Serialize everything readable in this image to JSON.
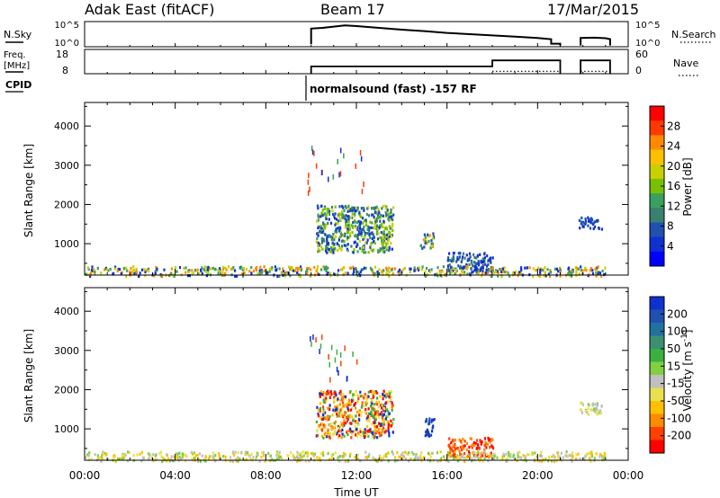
{
  "header": {
    "station": "Adak East (fitACF)",
    "beam": "Beam 17",
    "date": "17/Mar/2015"
  },
  "strip_labels": {
    "nsky": "N.Sky",
    "freq": "Freq.",
    "freq_unit": "[MHz]",
    "cpid": "CPID",
    "nsearch": "N.Search",
    "nave": "Nave"
  },
  "cpid_text": "normalsound (fast) -157 RF",
  "chart_data": [
    {
      "type": "line",
      "name": "nsky-nsearch-strip",
      "yticks_left": [
        "10^5",
        "10^0"
      ],
      "yticks_right": [
        "10^5",
        "10^0"
      ],
      "x_range": [
        0,
        24
      ],
      "segments": [
        {
          "x": [
            10.0,
            10.0,
            10.5,
            11.0,
            11.5,
            12.0,
            13.0,
            14.0,
            15.0,
            16.0,
            17.0,
            18.0,
            19.0,
            20.0,
            20.6,
            20.6,
            21.0,
            21.0
          ],
          "y": [
            0.1,
            0.72,
            0.75,
            0.8,
            0.85,
            0.82,
            0.75,
            0.68,
            0.62,
            0.55,
            0.5,
            0.45,
            0.4,
            0.35,
            0.3,
            0.12,
            0.12,
            0.05
          ]
        },
        {
          "x": [
            21.9,
            21.9,
            22.5,
            23.0,
            23.2,
            23.2
          ],
          "y": [
            0.05,
            0.35,
            0.36,
            0.34,
            0.3,
            0.05
          ]
        }
      ]
    },
    {
      "type": "line",
      "name": "freq-nave-strip",
      "yticks_left": [
        "18",
        "8"
      ],
      "yticks_right": [
        "60",
        "0"
      ],
      "ylim_left": [
        8,
        18
      ],
      "ylim_right": [
        0,
        60
      ],
      "x_range": [
        0,
        24
      ],
      "freq_segments": [
        {
          "x": [
            10.0,
            10.0,
            18.0,
            18.0,
            21.0,
            21.0
          ],
          "y": [
            8,
            11,
            11,
            13.5,
            13.5,
            8
          ]
        },
        {
          "x": [
            21.9,
            21.9,
            23.2,
            23.2
          ],
          "y": [
            8,
            13.5,
            13.5,
            8
          ]
        }
      ],
      "nave_segments": [
        {
          "x": [
            18.0,
            21.0
          ],
          "y": [
            9,
            9
          ]
        },
        {
          "x": [
            21.9,
            23.2
          ],
          "y": [
            9,
            9
          ]
        }
      ]
    },
    {
      "type": "heatmap",
      "name": "power-panel",
      "ylabel": "Slant Range [km]",
      "yticks": [
        1000,
        2000,
        3000,
        4000
      ],
      "ylim": [
        200,
        4600
      ],
      "x_range": [
        0,
        24
      ],
      "colorbar": {
        "label": "Power [dB]",
        "ticks": [
          "28",
          "24",
          "20",
          "16",
          "12",
          "8",
          "4"
        ],
        "colors": [
          "#ff0000",
          "#ff3a00",
          "#ff8a00",
          "#ffc000",
          "#c8d000",
          "#78c000",
          "#3aa060",
          "#3a8070",
          "#2050b0",
          "#1030d0",
          "#0000ff"
        ]
      },
      "regions": [
        {
          "x": [
            10.2,
            13.6
          ],
          "y": [
            800,
            2000
          ],
          "palette": [
            "#1030d0",
            "#2050b0",
            "#3a8070",
            "#3aa060",
            "#78c000",
            "#c8d000"
          ]
        },
        {
          "x": [
            14.8,
            15.4
          ],
          "y": [
            900,
            1300
          ],
          "palette": [
            "#ff8a00",
            "#c8d000",
            "#3aa060",
            "#2050b0"
          ]
        },
        {
          "x": [
            16.0,
            18.0
          ],
          "y": [
            300,
            800
          ],
          "palette": [
            "#1030d0",
            "#2050b0",
            "#3a8070"
          ]
        },
        {
          "x": [
            0.0,
            23.0
          ],
          "y": [
            200,
            450
          ],
          "palette": [
            "#1030d0",
            "#3aa060",
            "#c8d000",
            "#ff8a00"
          ]
        },
        {
          "x": [
            21.8,
            22.8
          ],
          "y": [
            1400,
            1700
          ],
          "palette": [
            "#1030d0",
            "#2050b0"
          ]
        },
        {
          "x": [
            9.8,
            12.4
          ],
          "y": [
            2300,
            3500
          ],
          "palette": [
            "#1030d0",
            "#ff3a00",
            "#3aa060"
          ]
        }
      ]
    },
    {
      "type": "heatmap",
      "name": "velocity-panel",
      "ylabel": "Slant Range [km]",
      "xlabel": "Time UT",
      "xticks": [
        "00:00",
        "04:00",
        "08:00",
        "12:00",
        "16:00",
        "20:00",
        "00:00"
      ],
      "yticks": [
        1000,
        2000,
        3000,
        4000
      ],
      "ylim": [
        200,
        4600
      ],
      "x_range": [
        0,
        24
      ],
      "colorbar": {
        "label": "Velocity [m s^-1]",
        "ticks": [
          "200",
          "100",
          "50",
          "15",
          "-15",
          "-50",
          "-100",
          "-200"
        ],
        "colors": [
          "#1030d0",
          "#2050b0",
          "#2070a0",
          "#3a9070",
          "#3ab040",
          "#80d040",
          "#c0c0c0",
          "#e8e050",
          "#ffc000",
          "#ff8a00",
          "#ff4000",
          "#ff0000"
        ]
      },
      "regions": [
        {
          "x": [
            10.2,
            13.6
          ],
          "y": [
            800,
            2000
          ],
          "palette": [
            "#ff0000",
            "#ff4000",
            "#ff8a00",
            "#ffc000",
            "#1030d0",
            "#3ab040",
            "#e8e050"
          ]
        },
        {
          "x": [
            15.0,
            15.4
          ],
          "y": [
            800,
            1300
          ],
          "palette": [
            "#1030d0",
            "#2050b0"
          ]
        },
        {
          "x": [
            16.0,
            18.0
          ],
          "y": [
            300,
            800
          ],
          "palette": [
            "#ff0000",
            "#ff4000",
            "#ff8a00"
          ]
        },
        {
          "x": [
            0.0,
            23.0
          ],
          "y": [
            200,
            450
          ],
          "palette": [
            "#ffc000",
            "#e8e050",
            "#80d040",
            "#c0c0c0"
          ]
        },
        {
          "x": [
            21.8,
            22.8
          ],
          "y": [
            1400,
            1700
          ],
          "palette": [
            "#e8e050",
            "#c0c0c0",
            "#80d040"
          ]
        },
        {
          "x": [
            9.8,
            12.4
          ],
          "y": [
            2300,
            3500
          ],
          "palette": [
            "#1030d0",
            "#ff4000",
            "#3ab040"
          ]
        }
      ]
    }
  ]
}
